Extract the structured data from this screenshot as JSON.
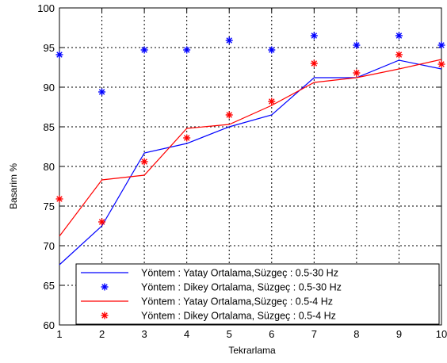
{
  "chart_data": {
    "type": "line",
    "xlabel": "Tekrarlama",
    "ylabel": "Basarim %",
    "xlim": [
      1,
      10
    ],
    "ylim": [
      60,
      100
    ],
    "xticks": [
      "1",
      "2",
      "3",
      "4",
      "5",
      "6",
      "7",
      "8",
      "9",
      "10"
    ],
    "yticks": [
      "60",
      "65",
      "70",
      "75",
      "80",
      "85",
      "90",
      "95",
      "100"
    ],
    "grid": true,
    "legend_position": "bottom-right",
    "x": [
      1,
      2,
      3,
      4,
      5,
      6,
      7,
      8,
      9,
      10
    ],
    "series": [
      {
        "name": "Yöntem : Yatay Ortalama,Süzgeç : 0.5-30 Hz",
        "style": "line",
        "color": "#0000ff",
        "values": [
          67.6,
          72.5,
          81.7,
          82.9,
          85.0,
          86.5,
          91.2,
          91.2,
          93.4,
          92.3
        ]
      },
      {
        "name": "Yöntem : Dikey Ortalama, Süzgeç : 0.5-30 Hz",
        "style": "marker",
        "color": "#0000ff",
        "values": [
          94.1,
          89.4,
          94.7,
          94.7,
          95.9,
          94.7,
          96.5,
          95.3,
          96.5,
          95.3
        ]
      },
      {
        "name": "Yöntem : Yatay Ortalama,Süzgeç : 0.5-4 Hz",
        "style": "line",
        "color": "#ff0000",
        "values": [
          71.2,
          78.3,
          78.9,
          84.8,
          85.3,
          87.7,
          90.6,
          91.2,
          92.3,
          93.5
        ]
      },
      {
        "name": "Yöntem : Dikey Ortalama, Süzgeç : 0.5-4 Hz",
        "style": "marker",
        "color": "#ff0000",
        "values": [
          75.9,
          73.0,
          80.6,
          83.6,
          86.5,
          88.2,
          93.0,
          91.8,
          94.1,
          92.9
        ]
      }
    ]
  }
}
